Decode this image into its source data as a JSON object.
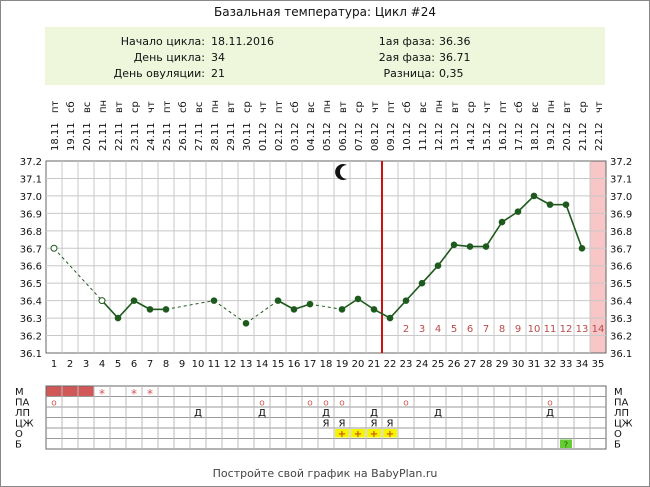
{
  "title": "Базальная температура: Цикл #24",
  "info": {
    "cycle_start_label": "Начало цикла:",
    "cycle_start": "18.11.2016",
    "cycle_day_label": "День цикла:",
    "cycle_day": "34",
    "ovulation_day_label": "День овуляции:",
    "ovulation_day": "21",
    "phase1_label": "1ая фаза:",
    "phase1": "36.36",
    "phase2_label": "2ая фаза:",
    "phase2": "36.71",
    "difference_label": "Разница:",
    "difference": "0,35"
  },
  "footer": "Постройте свой график на BabyPlan.ru",
  "colors": {
    "temperature_line": "#1e5a1e",
    "ovulation_line": "#cc1111",
    "highlight_column": "#f8c6c6",
    "info_background": "#eef7dc",
    "phase_numbers": "#b94a4a",
    "menses_block": "#d05858",
    "plus_cell": "#f5f500",
    "b_cell": "#66cc33"
  },
  "icons": {
    "moon": "crescent-moon-icon"
  },
  "chart_data": {
    "type": "line",
    "title": "Базальная температура: Цикл #24",
    "ylim": [
      36.1,
      37.2
    ],
    "y_ticks": [
      "37.2",
      "37.1",
      "37.0",
      "36.9",
      "36.8",
      "36.7",
      "36.6",
      "36.5",
      "36.4",
      "36.3",
      "36.2",
      "36.1"
    ],
    "dates": [
      "18.11",
      "19.11",
      "20.11",
      "21.11",
      "22.11",
      "23.11",
      "24.11",
      "25.11",
      "26.11",
      "27.11",
      "28.11",
      "29.11",
      "30.11",
      "01.12",
      "02.12",
      "03.12",
      "04.12",
      "05.12",
      "06.12",
      "07.12",
      "08.12",
      "09.12",
      "10.12",
      "11.12",
      "12.12",
      "13.12",
      "14.12",
      "15.12",
      "16.12",
      "17.12",
      "18.12",
      "19.12",
      "20.12",
      "21.12",
      "22.12"
    ],
    "weekdays": [
      "пт",
      "сб",
      "вс",
      "пн",
      "вт",
      "ср",
      "чт",
      "пт",
      "сб",
      "вс",
      "пн",
      "вт",
      "ср",
      "чт",
      "пт",
      "сб",
      "вс",
      "пн",
      "вт",
      "ср",
      "чт",
      "пт",
      "сб",
      "вс",
      "пн",
      "вт",
      "ср",
      "чт",
      "пт",
      "сб",
      "вс",
      "пн",
      "вт",
      "ср",
      "чт"
    ],
    "days": [
      1,
      2,
      3,
      4,
      5,
      6,
      7,
      8,
      9,
      10,
      11,
      12,
      13,
      14,
      15,
      16,
      17,
      18,
      19,
      20,
      21,
      22,
      23,
      24,
      25,
      26,
      27,
      28,
      29,
      30,
      31,
      32,
      33,
      34,
      35
    ],
    "temperatures": [
      36.7,
      null,
      null,
      36.4,
      36.3,
      36.4,
      36.35,
      36.35,
      null,
      null,
      36.4,
      null,
      36.27,
      null,
      36.4,
      36.35,
      36.38,
      null,
      36.35,
      36.41,
      36.35,
      36.3,
      36.4,
      36.5,
      36.6,
      36.72,
      36.71,
      36.71,
      36.85,
      36.91,
      37.0,
      36.95,
      36.95,
      36.7,
      null
    ],
    "hollow_days": [
      1,
      4
    ],
    "dashed_segments": [
      [
        1,
        4
      ],
      [
        8,
        11
      ],
      [
        11,
        13
      ],
      [
        13,
        15
      ],
      [
        17,
        19
      ],
      [
        20,
        22
      ]
    ],
    "ovulation_day": 21,
    "highlight_day": 35,
    "moon_day": 19,
    "phase2_numbers": [
      "2",
      "3",
      "4",
      "5",
      "6",
      "7",
      "8",
      "9",
      "10",
      "11",
      "12",
      "13",
      "14"
    ],
    "phase2_start_day": 23
  },
  "table": {
    "row_labels": [
      "М",
      "ПА",
      "ЛП",
      "ЦЖ",
      "О",
      "Б"
    ],
    "menses_days": [
      1,
      2,
      3
    ],
    "marks": [
      {
        "row": 0,
        "day": 4,
        "text": "*"
      },
      {
        "row": 0,
        "day": 6,
        "text": "*"
      },
      {
        "row": 0,
        "day": 7,
        "text": "*"
      },
      {
        "row": 1,
        "day": 1,
        "text": "о"
      },
      {
        "row": 1,
        "day": 14,
        "text": "о"
      },
      {
        "row": 1,
        "day": 17,
        "text": "о"
      },
      {
        "row": 1,
        "day": 18,
        "text": "о"
      },
      {
        "row": 1,
        "day": 19,
        "text": "о"
      },
      {
        "row": 1,
        "day": 23,
        "text": "о"
      },
      {
        "row": 1,
        "day": 32,
        "text": "о"
      },
      {
        "row": 2,
        "day": 10,
        "text": "Д"
      },
      {
        "row": 2,
        "day": 14,
        "text": "Д"
      },
      {
        "row": 2,
        "day": 18,
        "text": "Д"
      },
      {
        "row": 2,
        "day": 21,
        "text": "Д"
      },
      {
        "row": 2,
        "day": 25,
        "text": "Д"
      },
      {
        "row": 2,
        "day": 32,
        "text": "Д"
      },
      {
        "row": 3,
        "day": 18,
        "text": "Я"
      },
      {
        "row": 3,
        "day": 19,
        "text": "Я"
      },
      {
        "row": 3,
        "day": 21,
        "text": "Я"
      },
      {
        "row": 3,
        "day": 22,
        "text": "Я"
      },
      {
        "row": 4,
        "day": 19,
        "text": "+"
      },
      {
        "row": 4,
        "day": 20,
        "text": "+"
      },
      {
        "row": 4,
        "day": 21,
        "text": "+"
      },
      {
        "row": 4,
        "day": 22,
        "text": "+"
      },
      {
        "row": 5,
        "day": 33,
        "text": "?"
      }
    ]
  }
}
